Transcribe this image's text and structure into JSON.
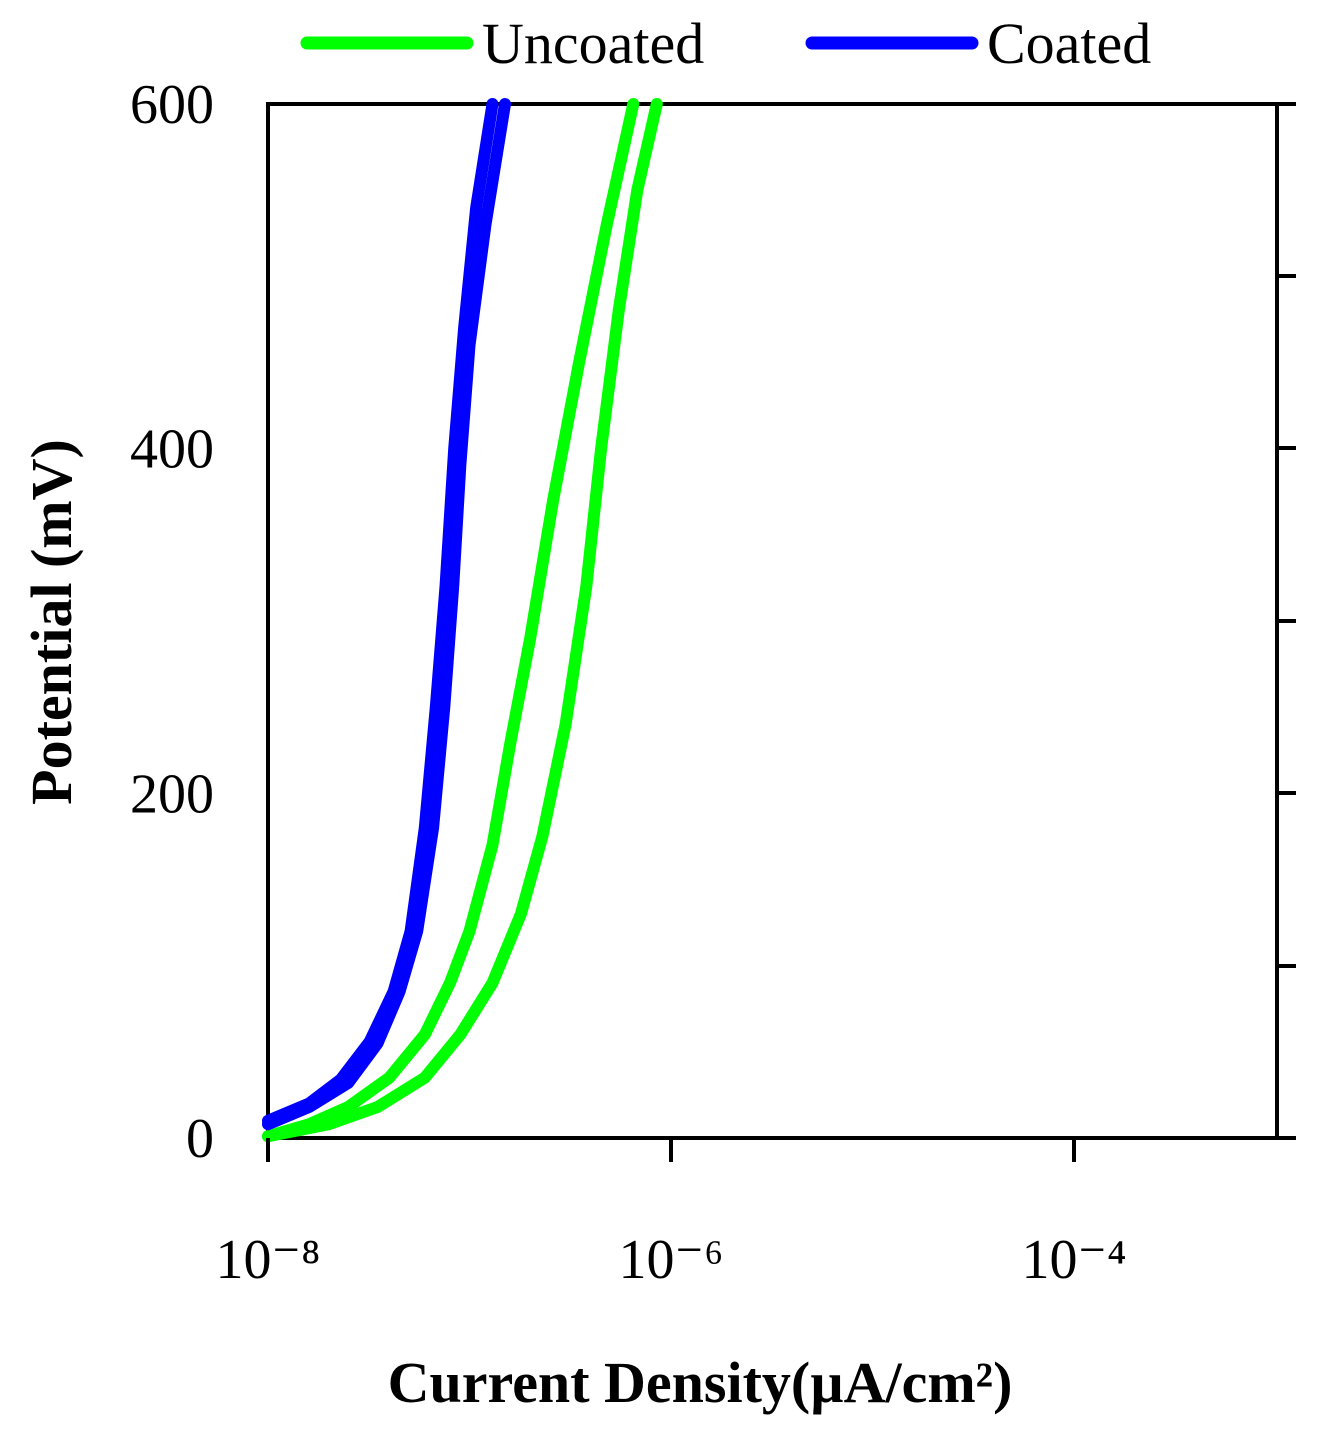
{
  "chart_data": {
    "type": "line",
    "xlabel": "Current Density(µA/cm²)",
    "ylabel": "Potential (mV)",
    "x_scale": "log",
    "xlim": [
      1e-08,
      0.0003
    ],
    "ylim": [
      0,
      600
    ],
    "x_ticks": [
      1e-08,
      1e-06,
      0.0001
    ],
    "x_tick_labels": [
      "10⁻⁸",
      "10⁻⁶",
      "10⁻⁴"
    ],
    "y_ticks": [
      0,
      200,
      400,
      600
    ],
    "y_tick_labels": [
      "0",
      "200",
      "400",
      "600"
    ],
    "grid": false,
    "legend_position": "top",
    "series": [
      {
        "name": "Uncoated",
        "color": "#00ff00",
        "branches": [
          [
            [
              1e-08,
              1
            ],
            [
              1.6e-08,
              8
            ],
            [
              2.5e-08,
              18
            ],
            [
              4e-08,
              35
            ],
            [
              6e-08,
              60
            ],
            [
              8e-08,
              90
            ],
            [
              1e-07,
              120
            ],
            [
              1.3e-07,
              170
            ],
            [
              1.6e-07,
              230
            ],
            [
              2e-07,
              290
            ],
            [
              2.6e-07,
              370
            ],
            [
              3.5e-07,
              450
            ],
            [
              4.8e-07,
              530
            ],
            [
              6.5e-07,
              600
            ]
          ],
          [
            [
              1e-08,
              1
            ],
            [
              2e-08,
              8
            ],
            [
              3.5e-08,
              18
            ],
            [
              6e-08,
              35
            ],
            [
              9e-08,
              60
            ],
            [
              1.3e-07,
              90
            ],
            [
              1.8e-07,
              130
            ],
            [
              2.3e-07,
              175
            ],
            [
              3e-07,
              240
            ],
            [
              3.8e-07,
              320
            ],
            [
              4.5e-07,
              400
            ],
            [
              5.5e-07,
              480
            ],
            [
              6.8e-07,
              550
            ],
            [
              8.5e-07,
              600
            ]
          ]
        ]
      },
      {
        "name": "Coated",
        "color": "#0000ff",
        "branches": [
          [
            [
              1e-08,
              8
            ],
            [
              1.6e-08,
              18
            ],
            [
              2.5e-08,
              32
            ],
            [
              3.5e-08,
              55
            ],
            [
              4.5e-08,
              85
            ],
            [
              5.5e-08,
              120
            ],
            [
              6.6e-08,
              180
            ],
            [
              7.5e-08,
              250
            ],
            [
              8.3e-08,
              320
            ],
            [
              9e-08,
              390
            ],
            [
              1e-07,
              460
            ],
            [
              1.2e-07,
              530
            ],
            [
              1.5e-07,
              600
            ]
          ],
          [
            [
              1e-08,
              10
            ],
            [
              1.6e-08,
              20
            ],
            [
              2.3e-08,
              34
            ],
            [
              3.2e-08,
              56
            ],
            [
              4.2e-08,
              85
            ],
            [
              5.1e-08,
              120
            ],
            [
              6e-08,
              180
            ],
            [
              6.8e-08,
              250
            ],
            [
              7.6e-08,
              320
            ],
            [
              8.4e-08,
              400
            ],
            [
              9.4e-08,
              470
            ],
            [
              1.08e-07,
              540
            ],
            [
              1.3e-07,
              600
            ]
          ]
        ]
      }
    ]
  }
}
